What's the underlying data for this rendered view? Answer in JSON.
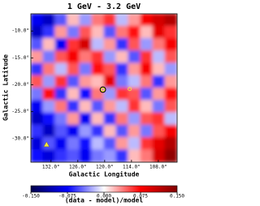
{
  "chart_data": {
    "type": "heatmap",
    "title": "1 GeV - 3.2 GeV",
    "x_label": "Galactic Longitude",
    "y_label": "Galactic Latitude",
    "colorbar_label": "(data - model)/model",
    "xlim": [
      136.5,
      103.8
    ],
    "ylim": [
      -34.4,
      -6.8
    ],
    "xticks": [
      {
        "value": 132,
        "label": "132.0°"
      },
      {
        "value": 126,
        "label": "126.0°"
      },
      {
        "value": 120,
        "label": "120.0°"
      },
      {
        "value": 114,
        "label": "114.0°"
      },
      {
        "value": 108,
        "label": "108.0°"
      }
    ],
    "yticks": [
      {
        "value": -10,
        "label": "-10.0°"
      },
      {
        "value": -15,
        "label": "-15.0°"
      },
      {
        "value": -20,
        "label": "-20.0°"
      },
      {
        "value": -25,
        "label": "-25.0°"
      },
      {
        "value": -30,
        "label": "-30.0°"
      }
    ],
    "vlim": [
      -0.15,
      0.15
    ],
    "cticks": [
      {
        "value": -0.15,
        "label": "-0.150"
      },
      {
        "value": -0.075,
        "label": "-0.075"
      },
      {
        "value": 0,
        "label": "0.000"
      },
      {
        "value": 0.075,
        "label": "0.075"
      },
      {
        "value": 0.15,
        "label": "0.150"
      }
    ],
    "colormap": [
      "#00004c",
      "#0000ff",
      "#ffffff",
      "#ff0000",
      "#800000"
    ],
    "z": [
      [
        -0.08,
        -0.1,
        -0.05,
        0.02,
        -0.03,
        0.04,
        0.06,
        -0.02,
        0.03,
        0.08,
        0.1,
        0.12
      ],
      [
        -0.1,
        -0.06,
        0.03,
        -0.04,
        0.05,
        0.02,
        -0.05,
        0.04,
        0.07,
        0.02,
        0.09,
        0.06
      ],
      [
        -0.05,
        0.02,
        -0.08,
        0.06,
        0.1,
        -0.02,
        0.03,
        -0.06,
        0.05,
        -0.03,
        0.04,
        0.08
      ],
      [
        0.03,
        -0.04,
        0.05,
        0.08,
        0.04,
        0.06,
        -0.03,
        0.02,
        -0.05,
        0.06,
        -0.02,
        0.05
      ],
      [
        -0.06,
        0.04,
        -0.02,
        0.05,
        -0.04,
        0.07,
        0.05,
        -0.06,
        0.03,
        0.08,
        0.02,
        -0.03
      ],
      [
        0.05,
        -0.03,
        0.06,
        -0.05,
        0.03,
        0.02,
        0.09,
        -0.04,
        -0.02,
        0.04,
        -0.06,
        0.03
      ],
      [
        -0.04,
        0.07,
        -0.06,
        0.02,
        -0.07,
        0.04,
        -0.03,
        0.06,
        0.05,
        -0.05,
        0.03,
        0.07
      ],
      [
        -0.08,
        -0.03,
        0.04,
        -0.06,
        0.02,
        -0.05,
        0.03,
        -0.02,
        0.06,
        0.02,
        -0.04,
        0.05
      ],
      [
        -0.1,
        -0.07,
        -0.04,
        0.03,
        -0.08,
        0.02,
        -0.06,
        0.04,
        -0.03,
        0.05,
        0.06,
        -0.02
      ],
      [
        -0.06,
        -0.1,
        -0.05,
        -0.08,
        -0.03,
        -0.06,
        0.02,
        -0.05,
        0.03,
        -0.04,
        0.05,
        0.08
      ],
      [
        -0.09,
        -0.05,
        -0.08,
        -0.04,
        -0.07,
        -0.02,
        -0.05,
        0.03,
        -0.02,
        0.06,
        0.09,
        0.12
      ],
      [
        -0.07,
        -0.09,
        -0.06,
        -0.05,
        -0.08,
        -0.04,
        -0.03,
        -0.06,
        0.02,
        0.04,
        0.1,
        0.14
      ]
    ],
    "circles": {
      "x": [
        120.4,
        114.4
      ],
      "y": [
        -20.9,
        -20.8
      ]
    },
    "triangles": {
      "x": [
        133.0
      ],
      "y": [
        -31.1
      ]
    }
  }
}
